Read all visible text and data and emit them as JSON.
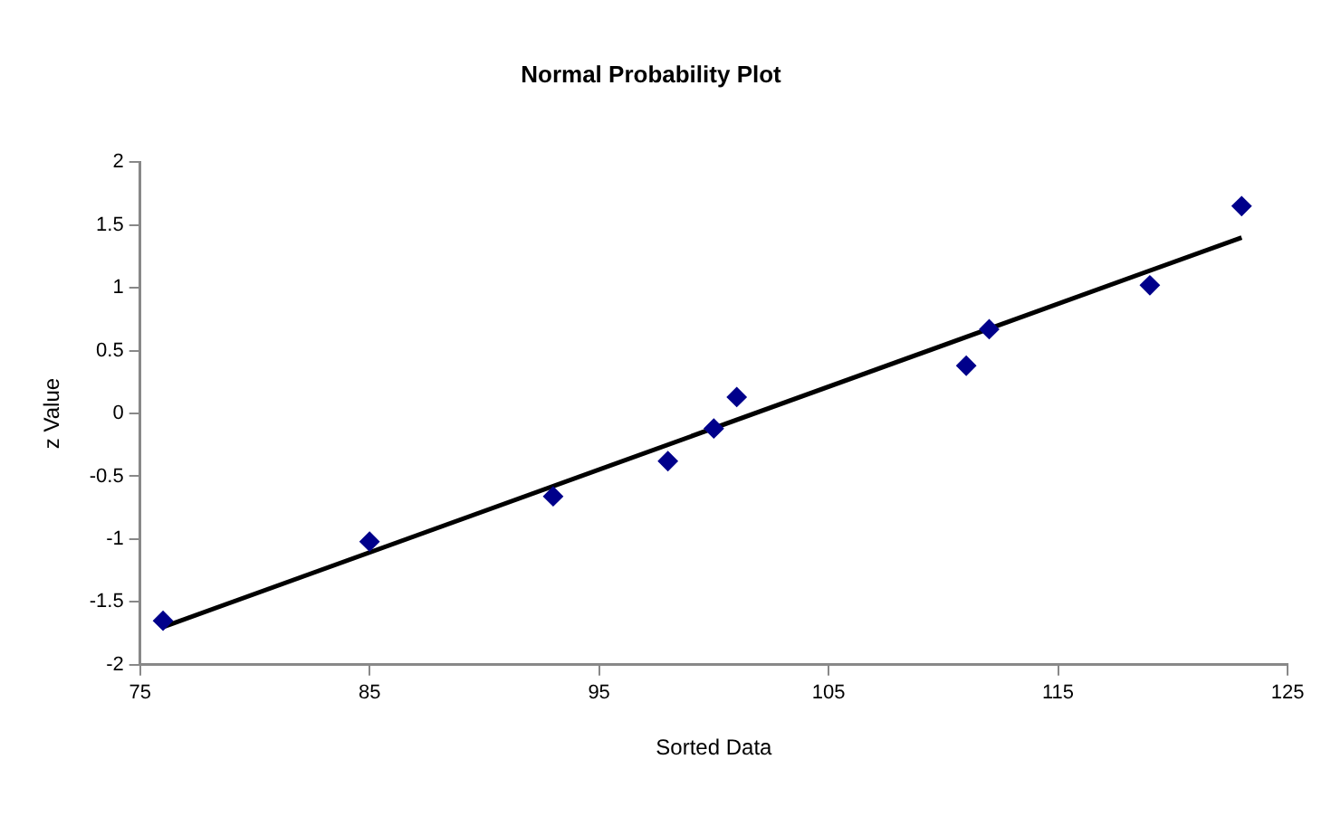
{
  "chart_data": {
    "type": "scatter",
    "title": "Normal Probability Plot",
    "xlabel": "Sorted Data",
    "ylabel": "z Value",
    "series": [
      {
        "type": "scatter",
        "color": "#00008b",
        "marker": "diamond",
        "x": [
          76,
          85,
          93,
          98,
          100,
          101,
          111,
          112,
          119,
          123
        ],
        "values": [
          -1.65,
          -1.02,
          -0.66,
          -0.38,
          -0.12,
          0.13,
          0.38,
          0.67,
          1.02,
          1.65
        ]
      },
      {
        "type": "line",
        "color": "#000000",
        "marker": "none",
        "x": [
          76,
          123
        ],
        "values": [
          -1.7,
          1.4
        ]
      }
    ],
    "xlim": [
      75,
      125
    ],
    "xticks": [
      75,
      85,
      95,
      105,
      115,
      125
    ],
    "ylim": [
      -2,
      2
    ],
    "yticks": [
      -2,
      -1.5,
      -1,
      -0.5,
      0,
      0.5,
      1,
      1.5,
      2
    ]
  }
}
